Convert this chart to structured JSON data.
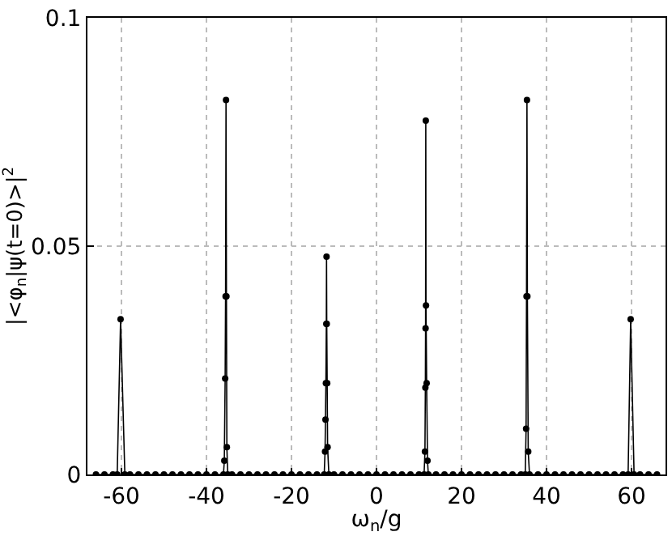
{
  "chart_data": {
    "type": "line",
    "xlabel": "ω$_{n}$/g",
    "ylabel": "|<φ$_{n}$|ψ(t=0)>|$^{2}$",
    "x": [
      -66,
      -64,
      -62,
      -61,
      -60.2,
      -59.2,
      -58,
      -56,
      -54,
      -52,
      -50,
      -48,
      -46,
      -44,
      -42,
      -40,
      -38,
      -36,
      -35.8,
      -35.6,
      -35.5,
      -35.4,
      -35.3,
      -35.2,
      -35,
      -34,
      -32,
      -30,
      -28,
      -26,
      -24,
      -22,
      -20,
      -18,
      -16,
      -14,
      -12.3,
      -12.1,
      -12,
      -11.9,
      -11.8,
      -11.75,
      -11.7,
      -11.6,
      -11.5,
      -11.2,
      -10,
      -8,
      -6,
      -4,
      -2,
      0,
      2,
      4,
      6,
      8,
      10,
      11.2,
      11.4,
      11.5,
      11.55,
      11.6,
      11.65,
      11.8,
      12,
      12.2,
      14,
      16,
      18,
      20,
      22,
      24,
      26,
      28,
      30,
      32,
      34,
      35,
      35.2,
      35.3,
      35.4,
      35.5,
      35.7,
      36,
      38,
      40,
      42,
      44,
      46,
      48,
      50,
      52,
      54,
      56,
      58,
      59.2,
      59.8,
      60.6,
      62,
      64,
      66
    ],
    "series": [
      {
        "color": "#000000",
        "values": [
          0,
          0,
          0,
          0,
          0.034,
          0,
          0,
          0,
          0,
          0,
          0,
          0,
          0,
          0,
          0,
          0,
          0,
          0,
          0.003,
          0.021,
          0.039,
          0.082,
          0.039,
          0.006,
          0,
          0,
          0,
          0,
          0,
          0,
          0,
          0,
          0,
          0,
          0,
          0,
          0,
          0.005,
          0.012,
          0.02,
          0.033,
          0.0477,
          0.033,
          0.02,
          0.006,
          0,
          0,
          0,
          0,
          0,
          0,
          0,
          0,
          0,
          0,
          0,
          0,
          0,
          0.005,
          0.019,
          0.032,
          0.0775,
          0.037,
          0.02,
          0.003,
          0,
          0,
          0,
          0,
          0,
          0,
          0,
          0,
          0,
          0,
          0,
          0,
          0,
          0.01,
          0.039,
          0.082,
          0.039,
          0.005,
          0,
          0,
          0,
          0,
          0,
          0,
          0,
          0,
          0,
          0,
          0,
          0,
          0,
          0.034,
          0,
          0,
          0,
          0
        ]
      }
    ],
    "xlim": [
      -68,
      68
    ],
    "ylim": [
      0,
      0.1
    ],
    "xticks": [
      -60,
      -40,
      -20,
      0,
      20,
      40,
      60
    ],
    "yticks": [
      0,
      0.05,
      0.1
    ],
    "grid": true,
    "marker": "circle",
    "line_style": "solid"
  }
}
